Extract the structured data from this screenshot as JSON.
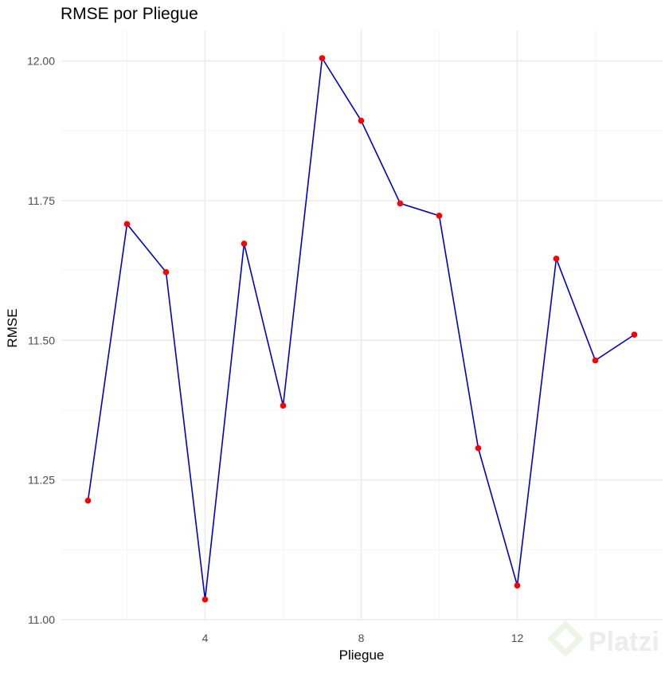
{
  "chart_data": {
    "type": "line",
    "title": "RMSE por Pliegue",
    "xlabel": "Pliegue",
    "ylabel": "RMSE",
    "x": [
      1,
      2,
      3,
      4,
      5,
      6,
      7,
      8,
      9,
      10,
      11,
      12,
      13,
      14,
      15
    ],
    "series": [
      {
        "values": [
          11.213,
          11.708,
          11.622,
          11.036,
          11.673,
          11.383,
          12.005,
          11.893,
          11.745,
          11.723,
          11.307,
          11.061,
          11.646,
          11.464,
          11.51
        ],
        "line_color": "#0000CD",
        "point_color": "#FF0000"
      }
    ],
    "xlim": [
      0.7,
      15.7
    ],
    "ylim": [
      11.0,
      12.08
    ],
    "xticks": [
      4,
      8,
      12
    ],
    "xtick_labels": [
      "4",
      "8",
      "12"
    ],
    "yticks": [
      11.0,
      11.25,
      11.5,
      11.75,
      12.0
    ],
    "ytick_labels": [
      "11.00",
      "11.25",
      "11.50",
      "11.75",
      "12.00"
    ],
    "grid": true,
    "legend": "none"
  },
  "watermark": {
    "text": "Platzi"
  },
  "colors": {
    "grid_major": "#EBEBEB",
    "grid_minor": "#F4F4F4",
    "axis_text": "#4D4D4D",
    "title": "#000000",
    "watermark": "#DDDDDD"
  }
}
